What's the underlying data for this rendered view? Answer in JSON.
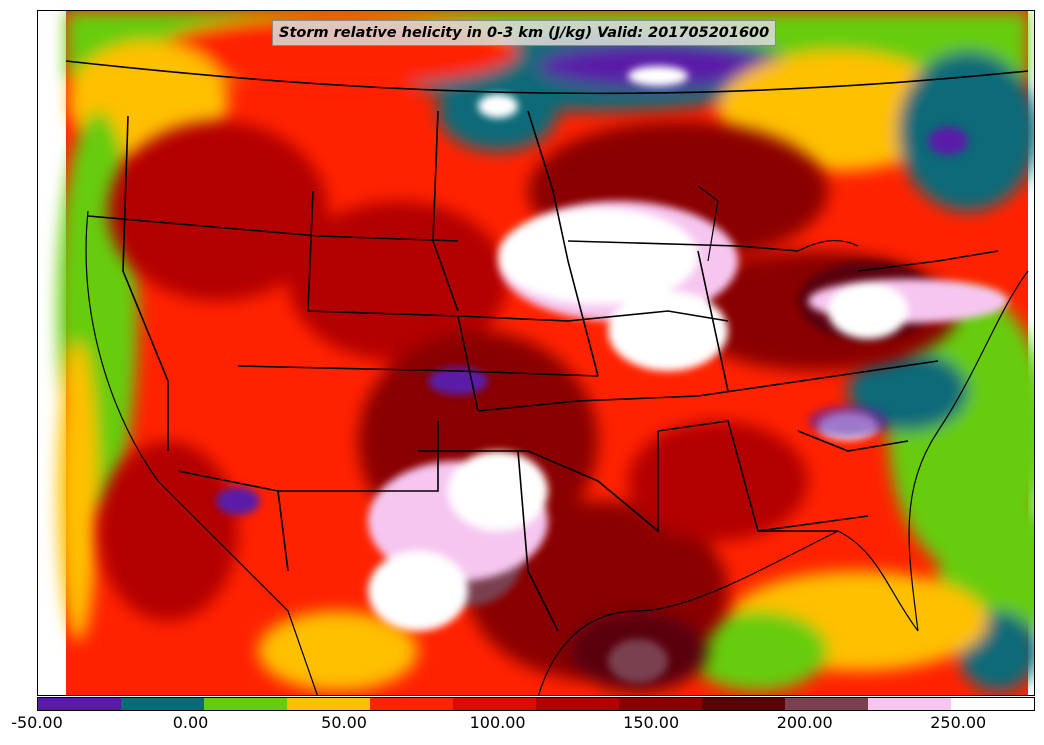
{
  "title": "Storm relative helicity in 0-3 km (J/kg) Valid: 201705201600",
  "colorbar": {
    "colors": [
      "#5a1aa8",
      "#0a6b78",
      "#66cc10",
      "#ffc000",
      "#ff2200",
      "#dd0a00",
      "#b30000",
      "#8a0000",
      "#5a0008",
      "#7a4050",
      "#f6c6f0",
      "#ffffff"
    ],
    "tick_labels": [
      "-50.00",
      "0.00",
      "50.00",
      "100.00",
      "150.00",
      "200.00",
      "250.00"
    ],
    "min": -50,
    "max": 275,
    "step": 25
  }
}
